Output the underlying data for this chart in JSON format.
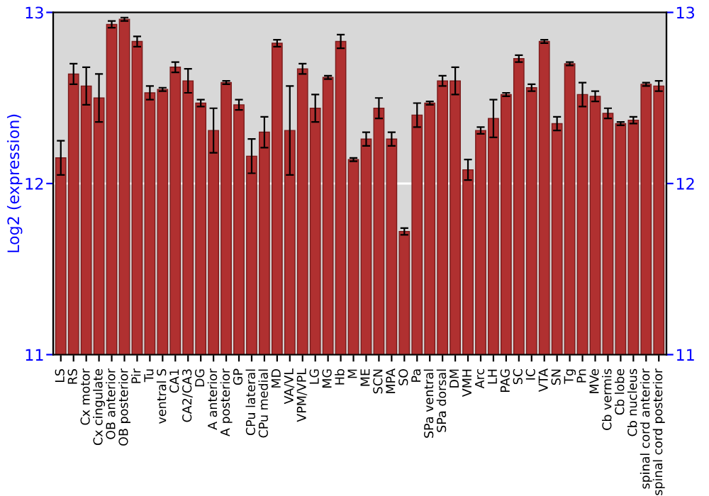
{
  "chart_data": {
    "type": "bar",
    "ylabel": "Log2 (expression)",
    "categories": [
      "LS",
      "RS",
      "Cx motor",
      "Cx cingulate",
      "OB anterior",
      "OB posterior",
      "Pir",
      "Tu",
      "ventral S",
      "CA1",
      "CA2/CA3",
      "DG",
      "A anterior",
      "A posterior",
      "GP",
      "CPu lateral",
      "CPu medial",
      "MD",
      "VA/VL",
      "VPM/VPL",
      "LG",
      "MG",
      "Hb",
      "M",
      "ME",
      "SCN",
      "MPA",
      "SO",
      "Pa",
      "SPa ventral",
      "SPa dorsal",
      "DM",
      "VMH",
      "Arc",
      "LH",
      "PAG",
      "SC",
      "IC",
      "VTA",
      "SN",
      "Tg",
      "Pn",
      "MVe",
      "Cb vermis",
      "Cb lobe",
      "Cb nucleus",
      "spinal cord anterior",
      "spinal cord posterior"
    ],
    "values": [
      12.15,
      12.64,
      12.57,
      12.5,
      12.93,
      12.96,
      12.83,
      12.53,
      12.55,
      12.68,
      12.6,
      12.47,
      12.31,
      12.59,
      12.46,
      12.16,
      12.3,
      12.82,
      12.31,
      12.67,
      12.44,
      12.62,
      12.83,
      12.14,
      12.26,
      12.44,
      12.26,
      11.72,
      12.4,
      12.47,
      12.6,
      12.6,
      12.08,
      12.31,
      12.38,
      12.52,
      12.73,
      12.56,
      12.83,
      12.35,
      12.7,
      12.52,
      12.51,
      12.41,
      12.35,
      12.37,
      12.58,
      12.57
    ],
    "errors": [
      0.1,
      0.06,
      0.11,
      0.14,
      0.02,
      0.01,
      0.03,
      0.04,
      0.01,
      0.03,
      0.07,
      0.02,
      0.13,
      0.01,
      0.03,
      0.1,
      0.09,
      0.02,
      0.26,
      0.03,
      0.08,
      0.01,
      0.04,
      0.01,
      0.04,
      0.06,
      0.04,
      0.02,
      0.07,
      0.01,
      0.03,
      0.08,
      0.06,
      0.02,
      0.11,
      0.01,
      0.02,
      0.02,
      0.01,
      0.04,
      0.01,
      0.07,
      0.03,
      0.03,
      0.01,
      0.02,
      0.01,
      0.03
    ],
    "color": "#b03030",
    "ylim": [
      11,
      13
    ],
    "yticks": [
      11,
      12,
      13
    ],
    "y2lim": [
      11,
      13
    ],
    "y2ticks": [
      11,
      12,
      13
    ],
    "grid": "y"
  }
}
